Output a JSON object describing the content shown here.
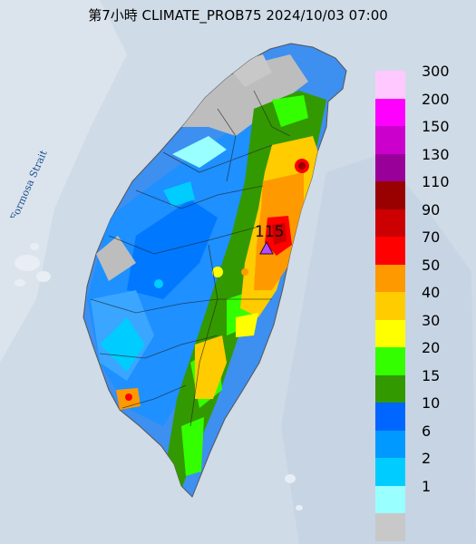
{
  "title": "第7小時  CLIMATE_PROB75 2024/10/03 07:00",
  "map_labels": {
    "strait": "Formosa Strait",
    "max_value": "115"
  },
  "colors": {
    "sea": "#cfdbe6",
    "land_gray": "#bdbdbd",
    "marker": "#b14cff"
  },
  "legend": [
    {
      "label": "300",
      "color": "#ffc8ff"
    },
    {
      "label": "200",
      "color": "#ff00ff"
    },
    {
      "label": "150",
      "color": "#cc00cc"
    },
    {
      "label": "130",
      "color": "#990099"
    },
    {
      "label": "110",
      "color": "#990000"
    },
    {
      "label": "90",
      "color": "#cc0000"
    },
    {
      "label": "70",
      "color": "#ff0000"
    },
    {
      "label": "50",
      "color": "#ff9900"
    },
    {
      "label": "40",
      "color": "#ffcc00"
    },
    {
      "label": "30",
      "color": "#ffff00"
    },
    {
      "label": "20",
      "color": "#33ff00"
    },
    {
      "label": "15",
      "color": "#339900"
    },
    {
      "label": "10",
      "color": "#0066ff"
    },
    {
      "label": "6",
      "color": "#0099ff"
    },
    {
      "label": "2",
      "color": "#00ccff"
    },
    {
      "label": "1",
      "color": "#99ffff"
    },
    {
      "label": "",
      "color": "#c8c8c8"
    }
  ]
}
